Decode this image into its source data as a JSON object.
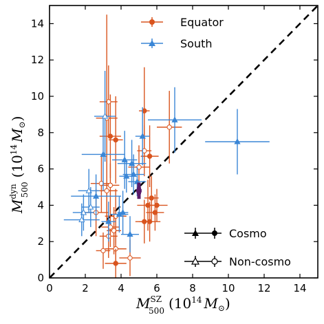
{
  "chart_data": {
    "type": "scatter",
    "xlabel": {
      "base": "M",
      "sup": "SZ",
      "sub": "500",
      "unit": "(10",
      "unit_exp": "14",
      "unit_sym": "M",
      "unit_sub": "⊙",
      "unit_close": ")"
    },
    "ylabel": {
      "base": "M",
      "sup": "dyn",
      "sub": "500",
      "unit": "(10",
      "unit_exp": "14",
      "unit_sym": "M",
      "unit_sub": "⊙",
      "unit_close": ")"
    },
    "xlim": [
      0,
      15
    ],
    "ylim": [
      0,
      15
    ],
    "xticks": [
      "0",
      "2",
      "4",
      "6",
      "8",
      "10",
      "12",
      "14"
    ],
    "yticks": [
      "0",
      "2",
      "4",
      "6",
      "8",
      "10",
      "12",
      "14"
    ],
    "tick_values": [
      0,
      2,
      4,
      6,
      8,
      10,
      12,
      14
    ],
    "grid": false,
    "reference_line": {
      "style": "dashed",
      "slope": 1,
      "color": "#000000"
    },
    "colors": {
      "equator": "#d9541e",
      "south": "#3a86d6",
      "mean": "#5a1a6a"
    },
    "legend_series": {
      "title_pos": "top-center",
      "items": [
        {
          "name": "Equator",
          "color": "#d9541e",
          "marker": "circle"
        },
        {
          "name": "South",
          "color": "#3a86d6",
          "marker": "triangle"
        }
      ]
    },
    "legend_markers": {
      "pos": "lower-right",
      "items": [
        {
          "name": "Cosmo",
          "filled": true
        },
        {
          "name": "Non-cosmo",
          "filled": false
        }
      ]
    },
    "mean_point": {
      "x": 5.0,
      "y": 4.8,
      "xerr": 0.15,
      "yerr": 0.45
    },
    "series": [
      {
        "name": "Equator",
        "marker": "circle",
        "points": [
          {
            "x": 3.4,
            "y": 7.8,
            "xerr": 0.6,
            "yerr": 2.3,
            "filled": true
          },
          {
            "x": 3.3,
            "y": 9.7,
            "xerr": 0.5,
            "yerr": 2.0,
            "filled": false
          },
          {
            "x": 3.2,
            "y": 8.8,
            "xerr": 0.6,
            "yerr": 5.7,
            "filled": false
          },
          {
            "x": 3.7,
            "y": 7.6,
            "xerr": 0.4,
            "yerr": 2.4,
            "filled": true
          },
          {
            "x": 5.3,
            "y": 9.2,
            "xerr": 0.3,
            "yerr": 2.4,
            "filled": true
          },
          {
            "x": 6.7,
            "y": 8.3,
            "xerr": 0.7,
            "yerr": 2.0,
            "filled": false
          },
          {
            "x": 5.3,
            "y": 7.0,
            "xerr": 0.4,
            "yerr": 1.4,
            "filled": false
          },
          {
            "x": 5.6,
            "y": 6.7,
            "xerr": 0.5,
            "yerr": 1.7,
            "filled": true
          },
          {
            "x": 5.0,
            "y": 6.1,
            "xerr": 0.6,
            "yerr": 1.2,
            "filled": false
          },
          {
            "x": 2.9,
            "y": 5.2,
            "xerr": 0.6,
            "yerr": 1.6,
            "filled": false
          },
          {
            "x": 3.4,
            "y": 5.1,
            "xerr": 0.5,
            "yerr": 1.2,
            "filled": false
          },
          {
            "x": 3.2,
            "y": 4.8,
            "xerr": 0.6,
            "yerr": 1.7,
            "filled": false
          },
          {
            "x": 2.6,
            "y": 3.6,
            "xerr": 0.7,
            "yerr": 1.3,
            "filled": false
          },
          {
            "x": 3.7,
            "y": 3.4,
            "xerr": 0.6,
            "yerr": 1.5,
            "filled": false
          },
          {
            "x": 3.4,
            "y": 2.8,
            "xerr": 0.5,
            "yerr": 1.1,
            "filled": false
          },
          {
            "x": 3.6,
            "y": 2.6,
            "xerr": 0.4,
            "yerr": 1.3,
            "filled": false
          },
          {
            "x": 3.3,
            "y": 2.3,
            "xerr": 0.5,
            "yerr": 1.2,
            "filled": false
          },
          {
            "x": 3.0,
            "y": 1.5,
            "xerr": 0.4,
            "yerr": 1.0,
            "filled": false
          },
          {
            "x": 3.7,
            "y": 1.6,
            "xerr": 0.6,
            "yerr": 1.0,
            "filled": false
          },
          {
            "x": 3.7,
            "y": 0.8,
            "xerr": 0.6,
            "yerr": 0.8,
            "filled": true
          },
          {
            "x": 4.5,
            "y": 1.1,
            "xerr": 0.6,
            "yerr": 1.0,
            "filled": false
          },
          {
            "x": 5.3,
            "y": 3.1,
            "xerr": 0.5,
            "yerr": 1.2,
            "filled": true
          },
          {
            "x": 5.6,
            "y": 3.1,
            "xerr": 0.6,
            "yerr": 1.1,
            "filled": true
          },
          {
            "x": 5.5,
            "y": 4.0,
            "xerr": 0.6,
            "yerr": 1.4,
            "filled": true
          },
          {
            "x": 5.7,
            "y": 4.4,
            "xerr": 0.4,
            "yerr": 1.2,
            "filled": true
          },
          {
            "x": 6.0,
            "y": 4.0,
            "xerr": 0.6,
            "yerr": 0.9,
            "filled": true
          },
          {
            "x": 5.9,
            "y": 3.6,
            "xerr": 0.5,
            "yerr": 1.0,
            "filled": true
          }
        ]
      },
      {
        "name": "South",
        "marker": "triangle",
        "points": [
          {
            "x": 3.1,
            "y": 8.9,
            "xerr": 0.6,
            "yerr": 2.5,
            "filled": false
          },
          {
            "x": 7.0,
            "y": 8.7,
            "xerr": 1.5,
            "yerr": 1.8,
            "filled": true
          },
          {
            "x": 10.5,
            "y": 7.5,
            "xerr": 1.8,
            "yerr": 1.8,
            "filled": true
          },
          {
            "x": 5.2,
            "y": 7.8,
            "xerr": 0.4,
            "yerr": 1.6,
            "filled": true
          },
          {
            "x": 3.0,
            "y": 6.8,
            "xerr": 1.2,
            "yerr": 2.0,
            "filled": true
          },
          {
            "x": 4.2,
            "y": 6.5,
            "xerr": 0.7,
            "yerr": 1.6,
            "filled": true
          },
          {
            "x": 4.6,
            "y": 6.3,
            "xerr": 0.8,
            "yerr": 1.3,
            "filled": true
          },
          {
            "x": 4.7,
            "y": 5.7,
            "xerr": 0.6,
            "yerr": 1.1,
            "filled": true
          },
          {
            "x": 4.9,
            "y": 5.3,
            "xerr": 0.5,
            "yerr": 0.8,
            "filled": true
          },
          {
            "x": 4.3,
            "y": 5.6,
            "xerr": 0.4,
            "yerr": 0.9,
            "filled": true
          },
          {
            "x": 2.2,
            "y": 4.8,
            "xerr": 0.6,
            "yerr": 1.2,
            "filled": false
          },
          {
            "x": 2.6,
            "y": 4.5,
            "xerr": 1.4,
            "yerr": 1.2,
            "filled": true
          },
          {
            "x": 2.3,
            "y": 3.9,
            "xerr": 0.5,
            "yerr": 1.1,
            "filled": false
          },
          {
            "x": 1.9,
            "y": 3.6,
            "xerr": 0.6,
            "yerr": 1.0,
            "filled": false
          },
          {
            "x": 1.8,
            "y": 3.2,
            "xerr": 1.0,
            "yerr": 0.9,
            "filled": false
          },
          {
            "x": 3.9,
            "y": 3.5,
            "xerr": 0.5,
            "yerr": 1.0,
            "filled": true
          },
          {
            "x": 4.1,
            "y": 3.6,
            "xerr": 0.3,
            "yerr": 1.2,
            "filled": true
          },
          {
            "x": 3.3,
            "y": 3.1,
            "xerr": 0.4,
            "yerr": 1.1,
            "filled": true
          },
          {
            "x": 4.5,
            "y": 2.4,
            "xerr": 0.5,
            "yerr": 1.0,
            "filled": true
          }
        ]
      }
    ]
  }
}
